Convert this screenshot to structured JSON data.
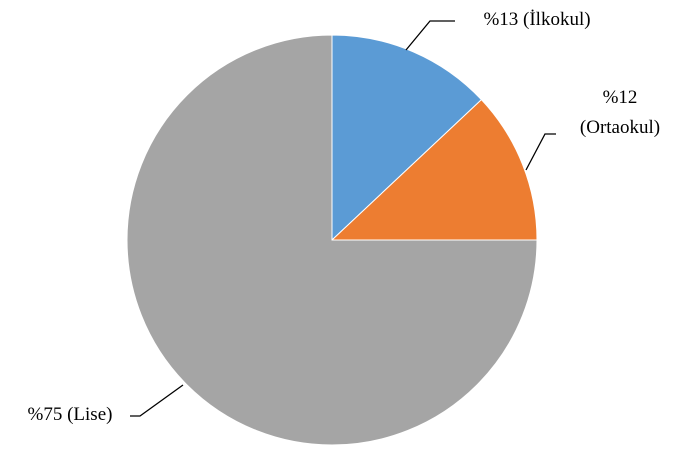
{
  "chart_data": {
    "type": "pie",
    "categories": [
      "İlkokul",
      "Ortaokul",
      "Lise"
    ],
    "values": [
      13,
      12,
      75
    ],
    "colors": [
      "#5b9bd5",
      "#ed7d31",
      "#a5a5a5"
    ],
    "data_labels": [
      [
        "%13 (İlkokul)"
      ],
      [
        "%12",
        "(Ortaokul)"
      ],
      [
        "%75 (Lise)"
      ]
    ],
    "start_angle": "12 o'clock",
    "direction": "clockwise",
    "legend": "none"
  }
}
